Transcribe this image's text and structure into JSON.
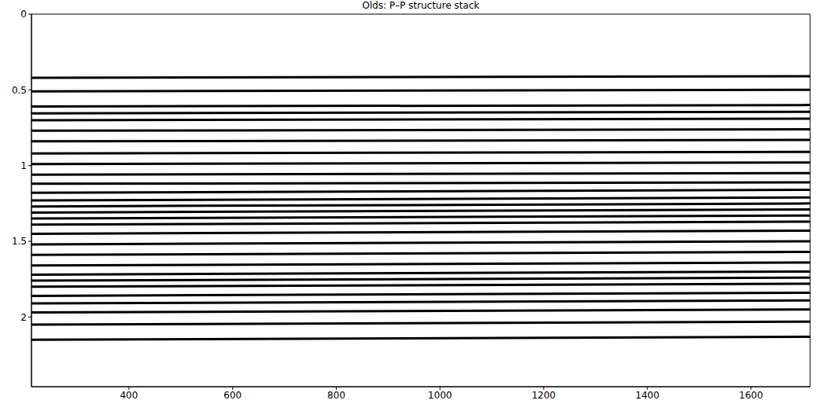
{
  "chart_data": {
    "type": "line",
    "title": "Olds: P–P structure stack",
    "x": [
      212,
      1714
    ],
    "series": [
      {
        "values": [
          0.42,
          0.41
        ]
      },
      {
        "values": [
          0.51,
          0.5
        ]
      },
      {
        "values": [
          0.61,
          0.6
        ]
      },
      {
        "values": [
          0.655,
          0.645
        ]
      },
      {
        "values": [
          0.7,
          0.69
        ]
      },
      {
        "values": [
          0.77,
          0.76
        ]
      },
      {
        "values": [
          0.84,
          0.83
        ]
      },
      {
        "values": [
          0.92,
          0.91
        ]
      },
      {
        "values": [
          0.99,
          0.98
        ]
      },
      {
        "values": [
          1.06,
          1.05
        ]
      },
      {
        "values": [
          1.12,
          1.11
        ]
      },
      {
        "values": [
          1.18,
          1.16
        ]
      },
      {
        "values": [
          1.23,
          1.21
        ]
      },
      {
        "values": [
          1.27,
          1.25
        ]
      },
      {
        "values": [
          1.31,
          1.29
        ]
      },
      {
        "values": [
          1.35,
          1.33
        ]
      },
      {
        "values": [
          1.39,
          1.37
        ]
      },
      {
        "values": [
          1.45,
          1.43
        ]
      },
      {
        "values": [
          1.52,
          1.5
        ]
      },
      {
        "values": [
          1.59,
          1.57
        ]
      },
      {
        "values": [
          1.66,
          1.64
        ]
      },
      {
        "values": [
          1.72,
          1.7
        ]
      },
      {
        "values": [
          1.76,
          1.74
        ]
      },
      {
        "values": [
          1.8,
          1.78
        ]
      },
      {
        "values": [
          1.86,
          1.84
        ]
      },
      {
        "values": [
          1.91,
          1.89
        ]
      },
      {
        "values": [
          1.97,
          1.95
        ]
      },
      {
        "values": [
          2.05,
          2.03
        ]
      },
      {
        "values": [
          2.15,
          2.13
        ]
      }
    ],
    "color": "#000000",
    "xlim": [
      212,
      1714
    ],
    "ylim": [
      0,
      2.46
    ],
    "xticks": [
      400,
      600,
      800,
      1000,
      1200,
      1400,
      1600
    ],
    "yticks": [
      0,
      0.5,
      1,
      1.5,
      2
    ]
  }
}
